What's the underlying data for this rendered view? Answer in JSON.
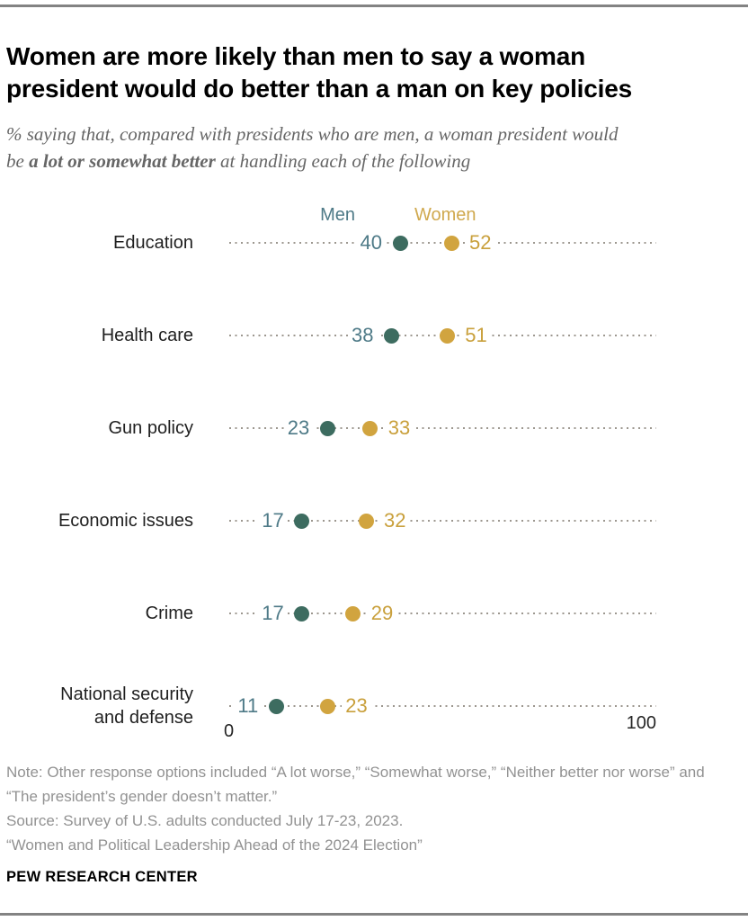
{
  "header": {
    "title": "Women are more likely than men to say a woman president would do better than a man on key policies",
    "subtitle_prefix": "% saying that, compared with presidents who are men, a woman president would be ",
    "subtitle_bold": "a lot or somewhat better",
    "subtitle_suffix": " at handling each of the following"
  },
  "chart_data": {
    "type": "dot-plot",
    "title": "Women are more likely than men to say a woman president would do better than a man on key policies",
    "categories": [
      "Education",
      "Health care",
      "Gun policy",
      "Economic issues",
      "Crime",
      "National security and defense"
    ],
    "series": [
      {
        "name": "Men",
        "values": [
          40,
          38,
          23,
          17,
          17,
          11
        ],
        "dot_color": "#3d6c60",
        "text_color": "#4e7a87"
      },
      {
        "name": "Women",
        "values": [
          52,
          51,
          33,
          32,
          29,
          23
        ],
        "dot_color": "#d1a43f",
        "text_color": "#c9a03c"
      }
    ],
    "xlim": [
      0,
      100
    ],
    "axis_ticks": {
      "min_label": "0",
      "max_label": "100"
    },
    "legend_position": "top",
    "grid": "dotted-leader-lines",
    "leader_color": "#9c978f"
  },
  "footer": {
    "note": "Note: Other response options included “A lot worse,” “Somewhat worse,” “Neither better nor worse” and “The president’s gender doesn’t matter.”",
    "source": "Source: Survey of U.S. adults conducted July 17-23, 2023.",
    "citation": "“Women and Political Leadership Ahead of the 2024 Election”",
    "brand": "PEW RESEARCH CENTER"
  }
}
